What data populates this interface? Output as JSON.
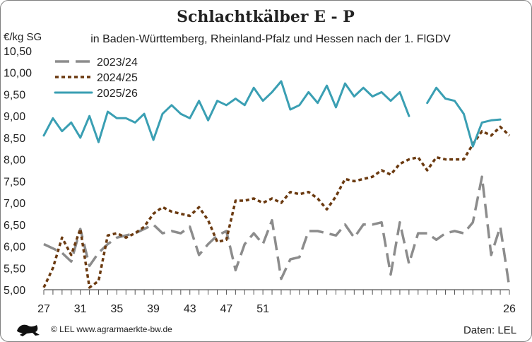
{
  "chart_data": {
    "type": "line",
    "title": "Schlachtkälber E - P",
    "subtitle": "in Baden-Württemberg, Rheinland-Pfalz und Hessen nach der 1. FlGDV",
    "ylabel": "€/kg SG",
    "ylim": [
      5.0,
      10.5
    ],
    "y_ticks": [
      "5,00",
      "5,50",
      "6,00",
      "6,50",
      "7,00",
      "7,50",
      "8,00",
      "8,50",
      "9,00",
      "9,50",
      "10,00",
      "10,50"
    ],
    "y_tick_values": [
      5.0,
      5.5,
      6.0,
      6.5,
      7.0,
      7.5,
      8.0,
      8.5,
      9.0,
      9.5,
      10.0,
      10.5
    ],
    "x_ticks": [
      "27",
      "31",
      "35",
      "39",
      "43",
      "47",
      "51",
      "2",
      "6",
      "10",
      "14",
      "18",
      "22",
      "26"
    ],
    "x": [
      "27",
      "28",
      "29",
      "30",
      "31",
      "32",
      "33",
      "34",
      "35",
      "36",
      "37",
      "38",
      "39",
      "40",
      "41",
      "42",
      "43",
      "44",
      "45",
      "46",
      "47",
      "48",
      "49",
      "50",
      "51",
      "52",
      "1",
      "2",
      "3",
      "4",
      "5",
      "6",
      "7",
      "8",
      "9",
      "10",
      "11",
      "12",
      "13",
      "14",
      "15",
      "16",
      "17",
      "18",
      "19",
      "20",
      "21",
      "22",
      "23",
      "24",
      "25",
      "26"
    ],
    "grid": false,
    "legend_position": "top-left",
    "series": [
      {
        "name": "2023/24",
        "color": "#8c8c8c",
        "style": "dashed",
        "values": [
          6.05,
          5.95,
          5.85,
          5.65,
          6.4,
          5.55,
          5.85,
          6.05,
          6.2,
          6.25,
          6.3,
          6.4,
          6.5,
          6.3,
          6.35,
          6.3,
          6.45,
          5.8,
          6.05,
          6.25,
          6.35,
          5.45,
          6.05,
          6.3,
          6.05,
          6.6,
          5.25,
          5.7,
          5.75,
          6.35,
          6.35,
          6.3,
          6.25,
          6.5,
          6.2,
          6.5,
          6.5,
          6.55,
          5.35,
          6.55,
          5.6,
          6.3,
          6.3,
          6.15,
          6.3,
          6.35,
          6.3,
          6.55,
          7.6,
          5.8,
          6.45,
          5.05
        ]
      },
      {
        "name": "2024/25",
        "color": "#6b3a10",
        "style": "dotted",
        "values": [
          5.05,
          5.5,
          6.2,
          5.8,
          6.4,
          5.05,
          5.2,
          6.25,
          6.3,
          6.2,
          6.3,
          6.45,
          6.75,
          6.9,
          6.8,
          6.75,
          6.7,
          6.9,
          6.6,
          6.1,
          6.15,
          7.05,
          7.05,
          7.1,
          7.0,
          7.1,
          7.0,
          7.25,
          7.2,
          7.25,
          7.1,
          6.85,
          7.15,
          7.55,
          7.5,
          7.55,
          7.6,
          7.75,
          7.65,
          7.9,
          8.0,
          8.05,
          7.75,
          8.05,
          8.0,
          8.0,
          8.0,
          8.35,
          8.65,
          8.55,
          8.75,
          8.55
        ]
      },
      {
        "name": "2025/26",
        "color": "#3a9fb3",
        "style": "solid",
        "values": [
          8.55,
          8.95,
          8.65,
          8.85,
          8.5,
          9.0,
          8.4,
          9.1,
          8.95,
          8.95,
          8.85,
          9.05,
          8.45,
          9.05,
          9.25,
          9.05,
          8.95,
          9.35,
          8.9,
          9.35,
          9.25,
          9.4,
          9.25,
          9.65,
          9.35,
          9.55,
          9.8,
          9.15,
          9.25,
          9.55,
          9.3,
          9.7,
          9.2,
          9.75,
          9.45,
          9.65,
          9.45,
          9.55,
          9.35,
          9.55,
          9.0,
          null,
          9.3,
          9.65,
          9.4,
          9.35,
          9.05,
          8.3,
          8.85,
          8.9,
          8.92,
          null
        ]
      }
    ]
  },
  "footer": {
    "copyright": "© LEL www.agrarmaerkte-bw.de",
    "source": "Daten:  LEL"
  }
}
